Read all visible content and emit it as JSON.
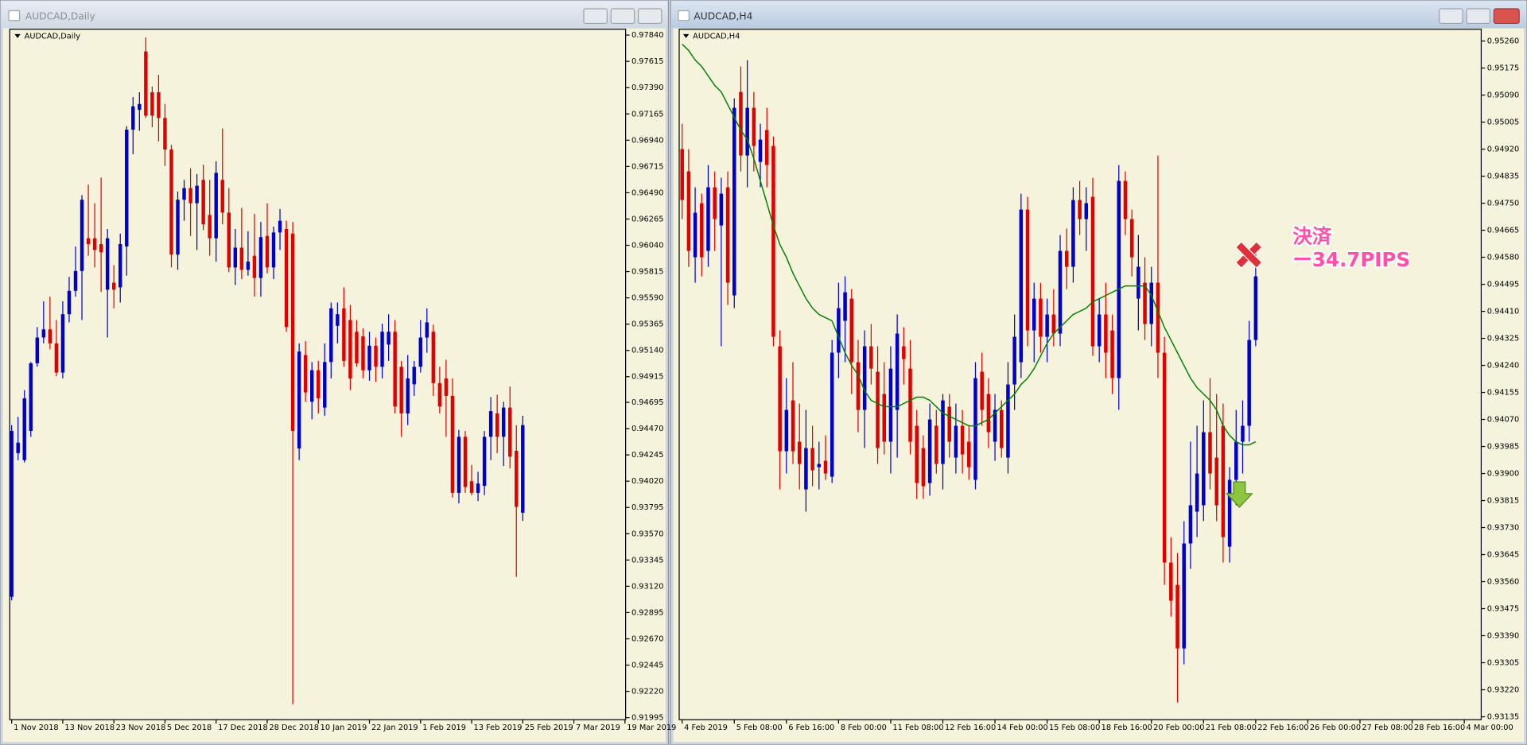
{
  "chart_data": [
    {
      "type": "candlestick",
      "title": "AUDCAD,Daily",
      "up_color": "#0000cc",
      "down_color": "#e00000",
      "open": [
        0.9303,
        0.9426,
        0.942,
        0.9445,
        0.9503,
        0.9525,
        0.9532,
        0.952,
        0.9495,
        0.9545,
        0.9565,
        0.9582,
        0.961,
        0.961,
        0.9605,
        0.9566,
        0.9572,
        0.9568,
        0.9603,
        0.9703,
        0.972,
        0.977,
        0.9735,
        0.9735,
        0.9713,
        0.9686,
        0.9596,
        0.9643,
        0.9653,
        0.964,
        0.966,
        0.963,
        0.961,
        0.966,
        0.9632,
        0.9585,
        0.9602,
        0.9583,
        0.9595,
        0.9576,
        0.9612,
        0.9585,
        0.9615,
        0.9618,
        0.9614,
        0.943,
        0.951,
        0.947,
        0.9497,
        0.9465,
        0.9504,
        0.9535,
        0.955,
        0.954,
        0.953,
        0.9526,
        0.9497,
        0.9518,
        0.95,
        0.9519,
        0.953,
        0.95,
        0.946,
        0.9485,
        0.95,
        0.9525,
        0.953,
        0.9486,
        0.949,
        0.9475,
        0.9392,
        0.944,
        0.9402,
        0.9392,
        0.9398,
        0.944,
        0.946,
        0.944,
        0.9465,
        0.9428,
        0.9375
      ],
      "high": [
        0.945,
        0.9457,
        0.948,
        0.9504,
        0.9534,
        0.9556,
        0.956,
        0.954,
        0.9556,
        0.9577,
        0.9603,
        0.9647,
        0.9656,
        0.964,
        0.9662,
        0.9618,
        0.9587,
        0.9614,
        0.9706,
        0.9731,
        0.9735,
        0.9782,
        0.974,
        0.975,
        0.9725,
        0.969,
        0.965,
        0.966,
        0.967,
        0.9665,
        0.9673,
        0.966,
        0.9676,
        0.9704,
        0.9653,
        0.9618,
        0.9636,
        0.9616,
        0.9631,
        0.9624,
        0.964,
        0.962,
        0.9635,
        0.9625,
        0.9624,
        0.952,
        0.9522,
        0.9504,
        0.9505,
        0.952,
        0.9555,
        0.9555,
        0.9568,
        0.9553,
        0.954,
        0.9533,
        0.953,
        0.9525,
        0.9537,
        0.9545,
        0.954,
        0.9505,
        0.951,
        0.9505,
        0.954,
        0.955,
        0.9536,
        0.95,
        0.9506,
        0.949,
        0.9446,
        0.9445,
        0.9416,
        0.941,
        0.9445,
        0.9474,
        0.9476,
        0.947,
        0.9483,
        0.945,
        0.9458
      ],
      "low": [
        0.93,
        0.942,
        0.9418,
        0.944,
        0.95,
        0.952,
        0.9515,
        0.9492,
        0.949,
        0.9538,
        0.956,
        0.954,
        0.9595,
        0.9585,
        0.9564,
        0.9525,
        0.955,
        0.9555,
        0.9578,
        0.9682,
        0.9702,
        0.9713,
        0.9705,
        0.9693,
        0.9672,
        0.9585,
        0.9583,
        0.9625,
        0.9612,
        0.96,
        0.9617,
        0.9595,
        0.959,
        0.9622,
        0.9581,
        0.957,
        0.9575,
        0.9578,
        0.956,
        0.956,
        0.958,
        0.9575,
        0.96,
        0.953,
        0.9211,
        0.942,
        0.947,
        0.9455,
        0.946,
        0.9458,
        0.949,
        0.952,
        0.95,
        0.948,
        0.95,
        0.949,
        0.9488,
        0.9487,
        0.949,
        0.9505,
        0.946,
        0.944,
        0.945,
        0.9475,
        0.9495,
        0.9512,
        0.9475,
        0.946,
        0.944,
        0.9388,
        0.9383,
        0.9392,
        0.939,
        0.9385,
        0.939,
        0.942,
        0.9426,
        0.9415,
        0.9413,
        0.932,
        0.9368
      ],
      "close": [
        0.9445,
        0.9435,
        0.9473,
        0.9503,
        0.9525,
        0.9532,
        0.952,
        0.9495,
        0.9545,
        0.9565,
        0.9582,
        0.9643,
        0.9605,
        0.96,
        0.9598,
        0.961,
        0.9566,
        0.9605,
        0.9703,
        0.9723,
        0.9725,
        0.9715,
        0.9715,
        0.9713,
        0.9686,
        0.9596,
        0.9643,
        0.9653,
        0.964,
        0.9655,
        0.9622,
        0.961,
        0.9666,
        0.9632,
        0.9585,
        0.9602,
        0.9583,
        0.959,
        0.9576,
        0.9611,
        0.9585,
        0.9615,
        0.9625,
        0.9534,
        0.9445,
        0.9513,
        0.9478,
        0.9497,
        0.9473,
        0.9504,
        0.955,
        0.9545,
        0.9505,
        0.949,
        0.9503,
        0.9497,
        0.9518,
        0.95,
        0.953,
        0.953,
        0.9466,
        0.946,
        0.949,
        0.95,
        0.9525,
        0.9538,
        0.9486,
        0.9466,
        0.9475,
        0.9392,
        0.944,
        0.9397,
        0.9392,
        0.94,
        0.944,
        0.9462,
        0.944,
        0.9465,
        0.9423,
        0.938,
        0.945
      ],
      "xlim": [
        -0.3,
        96.1
      ],
      "xticks": [
        {
          "value": 0,
          "label": "1 Nov 2018"
        },
        {
          "value": 8,
          "label": "13 Nov 2018"
        },
        {
          "value": 16,
          "label": "23 Nov 2018"
        },
        {
          "value": 24,
          "label": "5 Dec 2018"
        },
        {
          "value": 32,
          "label": "17 Dec 2018"
        },
        {
          "value": 40,
          "label": "28 Dec 2018"
        },
        {
          "value": 48,
          "label": "10 Jan 2019"
        },
        {
          "value": 56,
          "label": "22 Jan 2019"
        },
        {
          "value": 64,
          "label": "1 Feb 2019"
        },
        {
          "value": 72,
          "label": "13 Feb 2019"
        },
        {
          "value": 80,
          "label": "25 Feb 2019"
        },
        {
          "value": 88,
          "label": "7 Mar 2019"
        },
        {
          "value": 96,
          "label": "19 Mar 2019"
        }
      ],
      "ylim": [
        0.91978,
        0.9789
      ],
      "yticks": [
        {
          "value": 0.9784,
          "label": "0.97840"
        },
        0.97615,
        {
          "value": 0.9739,
          "label": "0.97390"
        },
        0.97165,
        {
          "value": 0.9694,
          "label": "0.96940"
        },
        0.96715,
        {
          "value": 0.9649,
          "label": "0.96490"
        },
        0.96265,
        {
          "value": 0.9604,
          "label": "0.96040"
        },
        0.95815,
        {
          "value": 0.9559,
          "label": "0.95590"
        },
        0.95365,
        {
          "value": 0.9514,
          "label": "0.95140"
        },
        0.94915,
        0.94695,
        {
          "value": 0.9447,
          "label": "0.94470"
        },
        0.94245,
        {
          "value": 0.9402,
          "label": "0.94020"
        },
        0.93795,
        {
          "value": 0.9357,
          "label": "0.93570"
        },
        0.93345,
        {
          "value": 0.9312,
          "label": "0.93120"
        },
        0.92895,
        {
          "value": 0.9267,
          "label": "0.92670"
        },
        0.92445,
        {
          "value": 0.9222,
          "label": "0.92220"
        },
        0.91995
      ]
    },
    {
      "type": "candlestick",
      "title": "AUDCAD,H4",
      "up_color": "#0000cc",
      "down_color": "#e00000",
      "open": [
        0.9492,
        0.9485,
        0.9458,
        0.9475,
        0.946,
        0.948,
        0.9468,
        0.948,
        0.9446,
        0.951,
        0.949,
        0.9505,
        0.9488,
        0.9498,
        0.9493,
        0.943,
        0.9397,
        0.9413,
        0.94,
        0.9385,
        0.9398,
        0.9392,
        0.9394,
        0.9389,
        0.9428,
        0.9438,
        0.9445,
        0.9425,
        0.941,
        0.943,
        0.9422,
        0.9415,
        0.94,
        0.941,
        0.943,
        0.9423,
        0.9405,
        0.9398,
        0.9387,
        0.9405,
        0.9393,
        0.9411,
        0.9395,
        0.9405,
        0.94,
        0.9388,
        0.9422,
        0.9415,
        0.94,
        0.941,
        0.9395,
        0.9418,
        0.9425,
        0.9473,
        0.9435,
        0.9445,
        0.9433,
        0.944,
        0.9434,
        0.946,
        0.9455,
        0.9476,
        0.947,
        0.9477,
        0.943,
        0.944,
        0.9435,
        0.942,
        0.9482,
        0.947,
        0.9445,
        0.945,
        0.9437,
        0.945,
        0.9428,
        0.9362,
        0.9355,
        0.9335,
        0.9368,
        0.9378,
        0.938,
        0.9403,
        0.9395,
        0.9405,
        0.9367,
        0.9388,
        0.94,
        0.9405,
        0.9432
      ],
      "high": [
        0.95,
        0.9492,
        0.948,
        0.9478,
        0.9487,
        0.9485,
        0.9483,
        0.9485,
        0.9508,
        0.9518,
        0.952,
        0.951,
        0.95,
        0.9505,
        0.9496,
        0.9435,
        0.942,
        0.9425,
        0.9412,
        0.941,
        0.9405,
        0.94,
        0.9402,
        0.9432,
        0.945,
        0.9452,
        0.9448,
        0.9432,
        0.9435,
        0.9437,
        0.943,
        0.9425,
        0.943,
        0.944,
        0.9436,
        0.9432,
        0.941,
        0.9402,
        0.9412,
        0.941,
        0.9415,
        0.9415,
        0.9412,
        0.941,
        0.9405,
        0.9425,
        0.9428,
        0.942,
        0.9415,
        0.9413,
        0.9425,
        0.944,
        0.9478,
        0.9477,
        0.945,
        0.945,
        0.9445,
        0.9448,
        0.9465,
        0.9467,
        0.948,
        0.9482,
        0.948,
        0.9483,
        0.9445,
        0.945,
        0.944,
        0.9487,
        0.9485,
        0.9473,
        0.9465,
        0.9458,
        0.9455,
        0.949,
        0.9433,
        0.937,
        0.9365,
        0.9375,
        0.94,
        0.9405,
        0.9413,
        0.942,
        0.9415,
        0.9412,
        0.9392,
        0.941,
        0.9413,
        0.9438,
        0.946
      ],
      "low": [
        0.947,
        0.9455,
        0.945,
        0.9452,
        0.9455,
        0.946,
        0.943,
        0.9443,
        0.9442,
        0.9485,
        0.948,
        0.9485,
        0.948,
        0.948,
        0.943,
        0.9385,
        0.939,
        0.9393,
        0.9385,
        0.9378,
        0.9386,
        0.9385,
        0.9388,
        0.9387,
        0.942,
        0.9425,
        0.9415,
        0.9403,
        0.9398,
        0.9418,
        0.9393,
        0.9396,
        0.939,
        0.9395,
        0.9418,
        0.9396,
        0.9382,
        0.9382,
        0.9383,
        0.939,
        0.9385,
        0.9395,
        0.939,
        0.939,
        0.9388,
        0.9385,
        0.9405,
        0.9398,
        0.9394,
        0.9395,
        0.939,
        0.941,
        0.942,
        0.943,
        0.9425,
        0.9428,
        0.9425,
        0.943,
        0.943,
        0.9448,
        0.945,
        0.9465,
        0.946,
        0.9427,
        0.9425,
        0.942,
        0.9415,
        0.941,
        0.9465,
        0.9452,
        0.9435,
        0.9432,
        0.943,
        0.942,
        0.9355,
        0.9345,
        0.9318,
        0.933,
        0.936,
        0.937,
        0.9375,
        0.9385,
        0.9375,
        0.9362,
        0.9362,
        0.938,
        0.939,
        0.94,
        0.943
      ],
      "close": [
        0.9476,
        0.946,
        0.9472,
        0.9458,
        0.948,
        0.947,
        0.9478,
        0.945,
        0.9505,
        0.949,
        0.9505,
        0.9493,
        0.9495,
        0.9487,
        0.9433,
        0.9397,
        0.941,
        0.9397,
        0.9393,
        0.9398,
        0.9391,
        0.9393,
        0.939,
        0.9428,
        0.9442,
        0.9447,
        0.9425,
        0.941,
        0.943,
        0.9423,
        0.9398,
        0.94,
        0.9423,
        0.9434,
        0.9426,
        0.94,
        0.9387,
        0.9386,
        0.9407,
        0.9393,
        0.9413,
        0.94,
        0.9405,
        0.9396,
        0.9392,
        0.942,
        0.941,
        0.9403,
        0.941,
        0.9398,
        0.9418,
        0.9433,
        0.9473,
        0.9435,
        0.9445,
        0.9433,
        0.944,
        0.9434,
        0.946,
        0.9455,
        0.9476,
        0.947,
        0.9475,
        0.943,
        0.944,
        0.9428,
        0.942,
        0.9482,
        0.947,
        0.9458,
        0.9455,
        0.9437,
        0.945,
        0.9428,
        0.9362,
        0.935,
        0.9335,
        0.9368,
        0.938,
        0.939,
        0.9403,
        0.939,
        0.938,
        0.937,
        0.9388,
        0.94,
        0.9405,
        0.9432,
        0.9452
      ],
      "overlay": {
        "color": "#008000",
        "values": [
          0.9525,
          0.9523,
          0.952,
          0.9518,
          0.9515,
          0.9512,
          0.951,
          0.9506,
          0.9502,
          0.9498,
          0.9495,
          0.9489,
          0.9482,
          0.9475,
          0.9468,
          0.9462,
          0.9458,
          0.9453,
          0.9449,
          0.9445,
          0.9442,
          0.944,
          0.9439,
          0.9438,
          0.9433,
          0.9428,
          0.9424,
          0.9421,
          0.9416,
          0.9413,
          0.9412,
          0.9411,
          0.9411,
          0.9411,
          0.9412,
          0.9413,
          0.9414,
          0.9414,
          0.9413,
          0.9411,
          0.9409,
          0.9408,
          0.9407,
          0.9406,
          0.9405,
          0.9405,
          0.9406,
          0.9407,
          0.9409,
          0.9411,
          0.9413,
          0.9415,
          0.9418,
          0.942,
          0.9423,
          0.9427,
          0.9431,
          0.9434,
          0.9436,
          0.9438,
          0.944,
          0.9441,
          0.9442,
          0.9444,
          0.9445,
          0.9446,
          0.9447,
          0.9448,
          0.9449,
          0.9449,
          0.9449,
          0.9449,
          0.9446,
          0.9441,
          0.9436,
          0.9432,
          0.9428,
          0.9424,
          0.942,
          0.9417,
          0.9415,
          0.9413,
          0.941,
          0.9405,
          0.9402,
          0.94,
          0.9399,
          0.9399,
          0.94
        ]
      },
      "annotations": [
        "決済",
        "ー34.7PIPS"
      ],
      "xlim": [
        -0.45,
        122.6
      ],
      "xticks": [
        {
          "value": 0,
          "label": "4 Feb 2019"
        },
        {
          "value": 8,
          "label": "5 Feb 08:00"
        },
        {
          "value": 16,
          "label": "6 Feb 16:00"
        },
        {
          "value": 24,
          "label": "8 Feb 00:00"
        },
        {
          "value": 32,
          "label": "11 Feb 08:00"
        },
        {
          "value": 40,
          "label": "12 Feb 16:00"
        },
        {
          "value": 48,
          "label": "14 Feb 00:00"
        },
        {
          "value": 56,
          "label": "15 Feb 08:00"
        },
        {
          "value": 64,
          "label": "18 Feb 16:00"
        },
        {
          "value": 72,
          "label": "20 Feb 00:00"
        },
        {
          "value": 80,
          "label": "21 Feb 08:00"
        },
        {
          "value": 88,
          "label": "22 Feb 16:00"
        },
        {
          "value": 96,
          "label": "26 Feb 00:00"
        },
        {
          "value": 104,
          "label": "27 Feb 08:00"
        },
        {
          "value": 112,
          "label": "28 Feb 16:00"
        },
        {
          "value": 120,
          "label": "4 Mar 00:00"
        }
      ],
      "ylim": [
        0.93126,
        0.95297
      ],
      "yticks": [
        {
          "value": 0.9526,
          "label": "0.95260"
        },
        0.95175,
        {
          "value": 0.9509,
          "label": "0.95090"
        },
        0.95005,
        {
          "value": 0.9492,
          "label": "0.94920"
        },
        0.94835,
        {
          "value": 0.9475,
          "label": "0.94750"
        },
        0.94665,
        {
          "value": 0.9458,
          "label": "0.94580"
        },
        0.94495,
        {
          "value": 0.9441,
          "label": "0.94410"
        },
        0.94325,
        {
          "value": 0.9424,
          "label": "0.94240"
        },
        0.94155,
        {
          "value": 0.9407,
          "label": "0.94070"
        },
        0.93985,
        {
          "value": 0.939,
          "label": "0.93900"
        },
        0.93815,
        {
          "value": 0.9373,
          "label": "0.93730"
        },
        0.93645,
        {
          "value": 0.9356,
          "label": "0.93560"
        },
        0.93475,
        {
          "value": 0.9339,
          "label": "0.93390"
        },
        0.93305,
        {
          "value": 0.9322,
          "label": "0.93220"
        },
        0.93135
      ]
    }
  ]
}
